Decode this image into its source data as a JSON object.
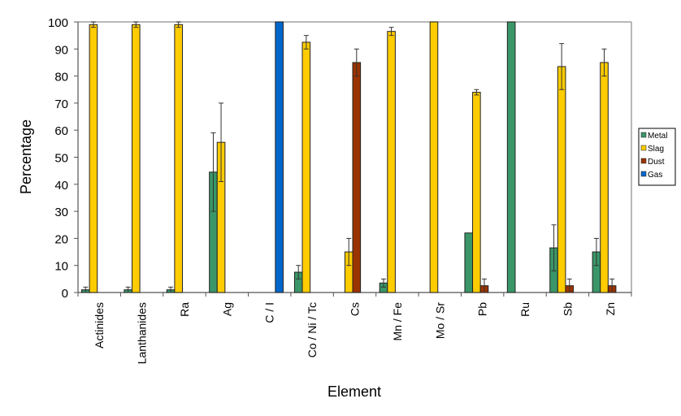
{
  "chart_data": {
    "type": "bar",
    "title": "",
    "xlabel": "Element",
    "ylabel": "Percentage",
    "ylim": [
      0,
      100
    ],
    "yticks": [
      0,
      10,
      20,
      30,
      40,
      50,
      60,
      70,
      80,
      90,
      100
    ],
    "grid": false,
    "legend_position": "right",
    "categories": [
      "Actinides",
      "Lanthanides",
      "Ra",
      "Ag",
      "C / I",
      "Co / Ni / Tc",
      "Cs",
      "Mn / Fe",
      "Mo / Sr",
      "Pb",
      "Ru",
      "Sb",
      "Zn"
    ],
    "series": [
      {
        "name": "Metal",
        "color": "#3a9668",
        "values": [
          1,
          1,
          1,
          44.5,
          null,
          7.5,
          null,
          3.5,
          null,
          22,
          100,
          16.5,
          15
        ],
        "errors": [
          1,
          1,
          1,
          14.5,
          null,
          2.5,
          null,
          1.5,
          null,
          null,
          null,
          8.5,
          5
        ]
      },
      {
        "name": "Slag",
        "color": "#ffcc00",
        "values": [
          99,
          99,
          99,
          55.5,
          null,
          92.5,
          15,
          96.5,
          100,
          74,
          null,
          83.5,
          85
        ],
        "errors": [
          1,
          1,
          1,
          14.5,
          null,
          2.5,
          5,
          1.5,
          null,
          1,
          null,
          8.5,
          5
        ]
      },
      {
        "name": "Dust",
        "color": "#993300",
        "values": [
          null,
          null,
          null,
          null,
          null,
          null,
          85,
          null,
          null,
          2.5,
          null,
          2.5,
          2.5
        ],
        "errors": [
          null,
          null,
          null,
          null,
          null,
          null,
          5,
          null,
          null,
          2.5,
          null,
          2.5,
          2.5
        ]
      },
      {
        "name": "Gas",
        "color": "#0066cc",
        "values": [
          null,
          null,
          null,
          null,
          100,
          null,
          null,
          null,
          null,
          null,
          null,
          null,
          null
        ],
        "errors": [
          null,
          null,
          null,
          null,
          null,
          null,
          null,
          null,
          null,
          null,
          null,
          null,
          null
        ]
      }
    ]
  }
}
